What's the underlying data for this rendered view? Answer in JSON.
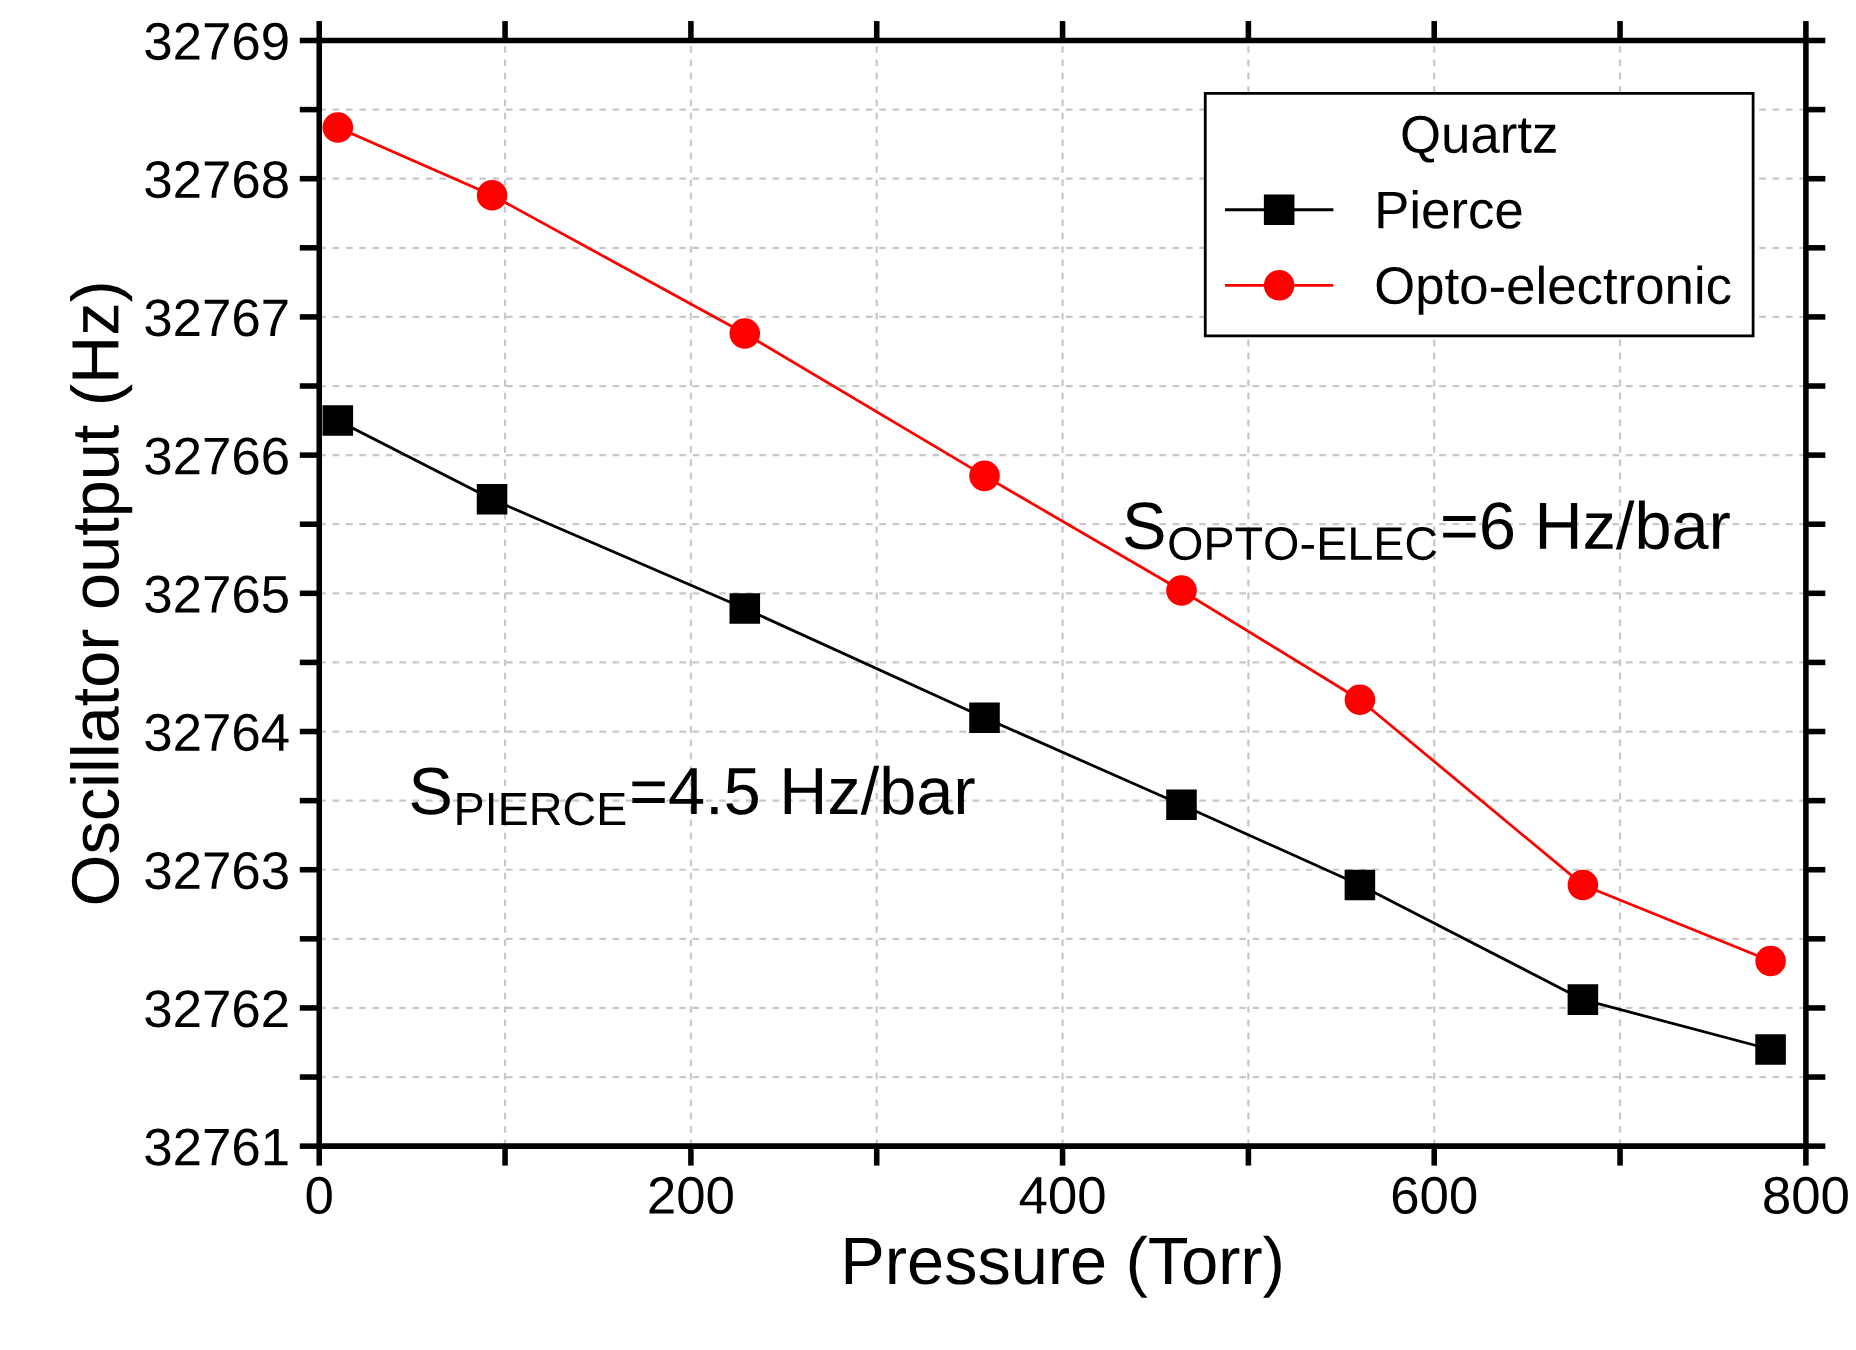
{
  "chart_data": {
    "type": "line",
    "xlabel": "Pressure (Torr)",
    "ylabel": "Oscillator output (Hz)",
    "legend_title": "Quartz",
    "x": [
      10,
      93,
      229,
      358,
      464,
      560,
      680,
      781
    ],
    "series": [
      {
        "name": "Pierce",
        "color": "#000000",
        "marker": "square",
        "values": [
          32766.25,
          32765.68,
          32764.89,
          32764.1,
          32763.47,
          32762.89,
          32762.06,
          32761.7
        ]
      },
      {
        "name": "Opto-electronic",
        "color": "#ff0000",
        "marker": "circle",
        "values": [
          32768.37,
          32767.88,
          32766.88,
          32765.85,
          32765.02,
          32764.23,
          32762.89,
          32762.34
        ]
      }
    ],
    "annotations": [
      "S$_{PIERCE}$=4.5 Hz/bar",
      "S$_{OPTO-ELEC}$=6 Hz/bar"
    ],
    "xlim": [
      0,
      800
    ],
    "xticks": [
      0,
      {
        "value": 100,
        "label": null
      },
      200,
      {
        "value": 300,
        "label": null
      },
      400,
      {
        "value": 500,
        "label": null
      },
      600,
      {
        "value": 700,
        "label": null
      },
      800
    ],
    "ylim": [
      32761,
      32769
    ],
    "yticks": [
      32761,
      {
        "value": 32761.5,
        "label": null
      },
      32762,
      {
        "value": 32762.5,
        "label": null
      },
      32763,
      {
        "value": 32763.5,
        "label": null
      },
      32764,
      {
        "value": 32764.5,
        "label": null
      },
      32765,
      {
        "value": 32765.5,
        "label": null
      },
      32766,
      {
        "value": 32766.5,
        "label": null
      },
      32767,
      {
        "value": 32767.5,
        "label": null
      },
      32768,
      {
        "value": 32768.5,
        "label": null
      },
      32769
    ],
    "grid": true,
    "legend": "top right",
    "line_style": "solid"
  }
}
